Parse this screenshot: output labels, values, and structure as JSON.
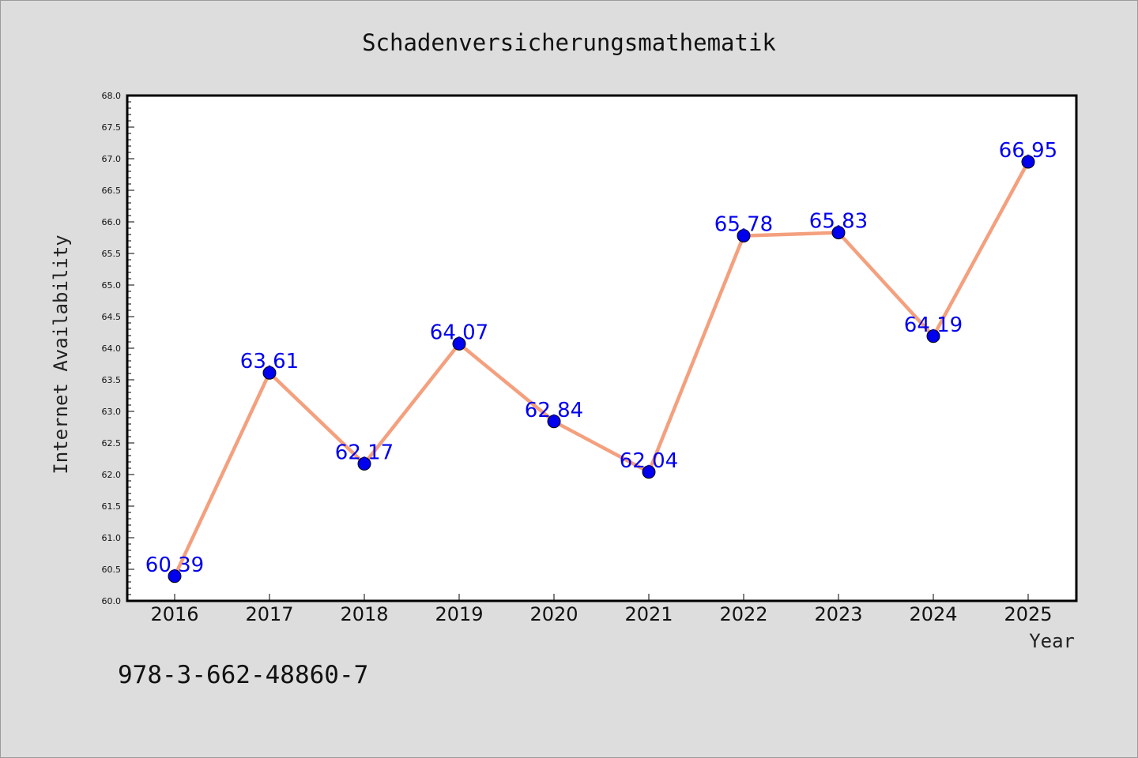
{
  "chart_data": {
    "type": "line",
    "title": "Schadenversicherungsmathematik",
    "xlabel": "Year",
    "ylabel": "Internet Availability",
    "x": [
      "2016",
      "2017",
      "2018",
      "2019",
      "2020",
      "2021",
      "2022",
      "2023",
      "2024",
      "2025"
    ],
    "series": [
      {
        "values": [
          60.39,
          63.61,
          62.17,
          64.07,
          62.84,
          62.04,
          65.78,
          65.83,
          64.19,
          66.95
        ],
        "labels": [
          "60.39",
          "63.61",
          "62.17",
          "64.07",
          "62.84",
          "62.04",
          "65.78",
          "65.83",
          "64.19",
          "66.95"
        ]
      }
    ],
    "ylim": [
      60.0,
      68.0
    ],
    "y_ticks": [
      "60.0",
      "60.5",
      "61.0",
      "61.5",
      "62.0",
      "62.5",
      "63.0",
      "63.5",
      "64.0",
      "64.5",
      "65.0",
      "65.5",
      "66.0",
      "66.5",
      "67.0",
      "67.5",
      "68.0"
    ],
    "grid": false,
    "legend": "none",
    "colors": {
      "line": "#f4a07e",
      "marker": "#0000ee",
      "data_label": "#0000ee",
      "plot_background": "#ffffff",
      "figure_background": "#dddddd"
    }
  },
  "footnote": "978-3-662-48860-7"
}
